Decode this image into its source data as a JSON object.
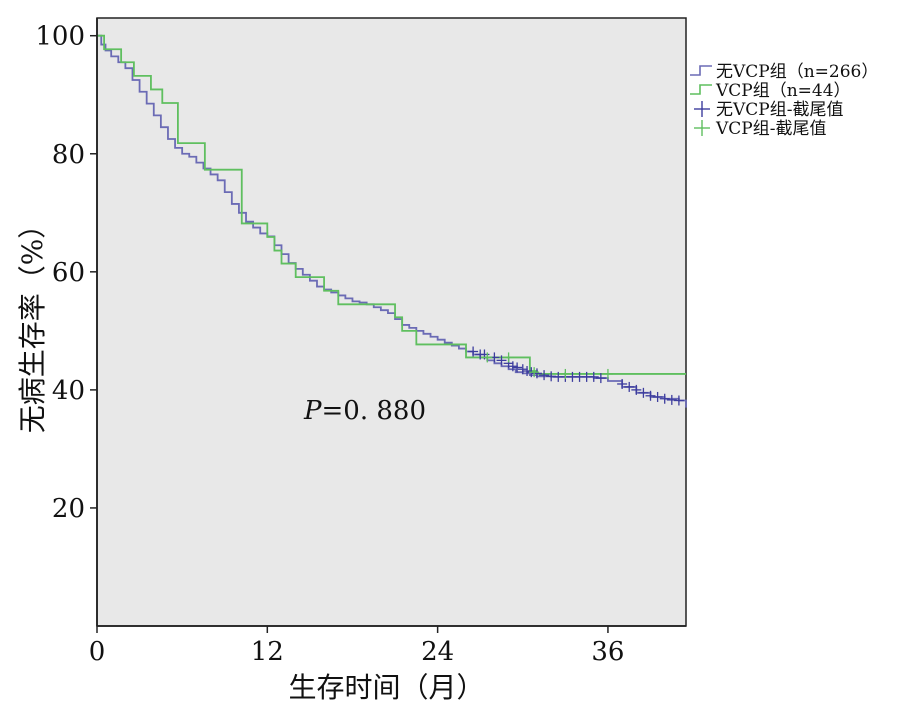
{
  "chart_data": {
    "type": "line",
    "step": true,
    "xlabel": "生存时间（月）",
    "ylabel": "无病生存率（%）",
    "xlim": [
      0,
      41.5
    ],
    "ylim": [
      0,
      103
    ],
    "xticks": [
      0,
      12,
      24,
      36
    ],
    "yticks": [
      20,
      40,
      60,
      80,
      100
    ],
    "xtick_labels": [
      "0",
      "12",
      "24",
      "36"
    ],
    "ytick_labels": [
      "20",
      "40",
      "60",
      "80",
      "100"
    ],
    "plot_background": "#e8e8e8",
    "grid": false,
    "legend_position": "right-top",
    "annotation": {
      "prefix": "P",
      "text": "=0. 880"
    },
    "legend": [
      {
        "label": "无VCP组（n=266）",
        "color": "#6b6bb5",
        "symbol": "line"
      },
      {
        "label": "VCP组（n=44）",
        "color": "#5fbf5f",
        "symbol": "line"
      },
      {
        "label": "无VCP组-截尾值",
        "color": "#3d3d9e",
        "symbol": "plus"
      },
      {
        "label": "VCP组-截尾值",
        "color": "#5fbf5f",
        "symbol": "plus"
      }
    ],
    "series": [
      {
        "name": "无VCP组（n=266）",
        "color": "#6b6bb5",
        "x": [
          0,
          0.3,
          0.6,
          1.0,
          1.5,
          2.0,
          2.5,
          3.0,
          3.5,
          4.0,
          4.5,
          5.0,
          5.5,
          6.0,
          6.5,
          7.0,
          7.5,
          8.0,
          8.5,
          9.0,
          9.5,
          10.0,
          10.5,
          11.0,
          11.5,
          12.0,
          12.5,
          13.0,
          13.5,
          14.0,
          14.5,
          15.0,
          15.5,
          16.0,
          16.5,
          17.0,
          17.5,
          18.0,
          18.5,
          19.0,
          19.5,
          20.0,
          20.5,
          21.0,
          21.5,
          22.0,
          22.5,
          23.0,
          23.5,
          24.0,
          24.5,
          25.0,
          25.5,
          26.0,
          26.5,
          27.0,
          27.5,
          28.0,
          28.5,
          29.0,
          29.5,
          30.0,
          30.5,
          31.0,
          32.0,
          33.0,
          34.0,
          35.0,
          36.0,
          37.0,
          38.0,
          39.0,
          40.0,
          41.0,
          41.5
        ],
        "y": [
          100,
          98.5,
          97.5,
          96.5,
          95.5,
          94.5,
          92.5,
          90.5,
          88.5,
          86.5,
          84.5,
          82.5,
          81.0,
          80.0,
          79.5,
          78.5,
          77.5,
          76.5,
          75.5,
          73.5,
          71.5,
          70.0,
          68.5,
          67.5,
          66.5,
          66.0,
          64.5,
          63.0,
          61.5,
          60.5,
          59.5,
          58.5,
          57.5,
          57.0,
          56.5,
          56.0,
          55.5,
          55.0,
          54.8,
          54.5,
          54.0,
          53.5,
          53.0,
          52.0,
          51.0,
          50.5,
          50.0,
          49.5,
          49.0,
          48.5,
          48.0,
          47.5,
          47.0,
          46.5,
          46.0,
          45.5,
          45.0,
          44.5,
          44.0,
          43.5,
          43.0,
          42.8,
          42.5,
          42.3,
          42.2,
          42.2,
          42.2,
          42.0,
          41.5,
          40.5,
          39.5,
          38.8,
          38.5,
          38.2,
          37.0
        ]
      },
      {
        "name": "VCP组（n=44）",
        "color": "#5fbf5f",
        "x": [
          0,
          0.5,
          1.7,
          2.6,
          3.8,
          4.6,
          5.7,
          7.6,
          9.8,
          10.2,
          11.5,
          12.0,
          12.5,
          13.0,
          14.0,
          16.0,
          17.0,
          19.0,
          20.0,
          21.0,
          21.5,
          22.5,
          24.0,
          25.0,
          26.0,
          27.0,
          28.5,
          30.5,
          31.0,
          41.5
        ],
        "y": [
          100,
          97.7,
          95.5,
          93.2,
          90.9,
          88.6,
          81.8,
          77.3,
          77.3,
          68.2,
          68.2,
          65.9,
          63.6,
          61.4,
          59.1,
          56.8,
          54.5,
          54.5,
          54.5,
          52.3,
          50.0,
          47.7,
          47.7,
          47.7,
          45.5,
          45.5,
          45.5,
          43.2,
          42.7,
          42.7
        ]
      }
    ],
    "censored": [
      {
        "series": "无VCP组（n=266）",
        "color": "#3d3d9e",
        "x": [
          26.5,
          27.0,
          27.3,
          28.0,
          28.5,
          29.0,
          29.3,
          29.6,
          30.0,
          30.3,
          30.6,
          31.0,
          31.5,
          32.0,
          32.5,
          33.0,
          33.5,
          34.0,
          34.5,
          35.0,
          35.5,
          37.0,
          37.5,
          38.0,
          38.5,
          39.0,
          39.5,
          40.0,
          40.5,
          41.0
        ],
        "y": [
          46.5,
          46.0,
          46.0,
          45.5,
          45.0,
          44.5,
          44.0,
          43.8,
          43.5,
          43.2,
          43.0,
          42.8,
          42.5,
          42.3,
          42.2,
          42.2,
          42.2,
          42.2,
          42.2,
          42.2,
          42.0,
          41.0,
          40.5,
          40.0,
          39.5,
          39.0,
          38.8,
          38.5,
          38.3,
          38.2
        ]
      },
      {
        "series": "VCP组（n=44）",
        "color": "#5fbf5f",
        "x": [
          27.5,
          29.0,
          30.8,
          33.0,
          36.0
        ],
        "y": [
          45.5,
          45.5,
          43.0,
          42.7,
          42.7
        ]
      }
    ]
  }
}
